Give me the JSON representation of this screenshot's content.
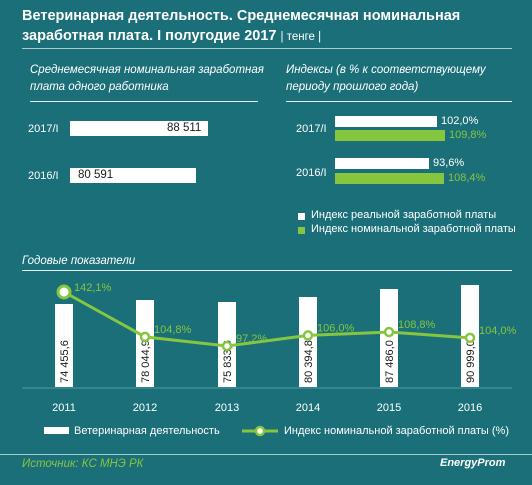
{
  "title": "Ветеринарная деятельность. Среднемесячная номинальная заработная плата. I полугодие 2017",
  "unit": "| тенге |",
  "left_chart": {
    "heading_line1": "Среднемесячная номинальная заработная",
    "heading_line2": "плата одного работника"
  },
  "right_chart": {
    "heading_line1": "Индексы (в % к соответствующему",
    "heading_line2": "периоду прошлого года)",
    "legend_real": "Индекс реальной заработной платы",
    "legend_nominal": "Индекс номинальной заработной платы"
  },
  "annual_heading": "Годовые показатели",
  "annual_legend": {
    "bars": "Ветеринарная деятельность",
    "line": "Индекс номинальной заработной платы (%)"
  },
  "source": "Источник: КС МНЭ РК",
  "logo": "EnergyProm",
  "colors": {
    "panel": "#1b6f79",
    "white": "#ffffff",
    "green": "#86c63f"
  },
  "chart_data": [
    {
      "type": "bar",
      "orientation": "horizontal",
      "categories": [
        "2017/I",
        "2016/I"
      ],
      "values": [
        88511,
        80591
      ],
      "value_labels": [
        "88 511",
        "80 591"
      ],
      "xlim": [
        0,
        88511
      ]
    },
    {
      "type": "bar",
      "orientation": "horizontal",
      "categories": [
        "2017/I",
        "2016/I"
      ],
      "series": [
        {
          "name": "Индекс реальной заработной платы",
          "values": [
            102.0,
            93.6
          ],
          "labels": [
            "102,0%",
            "93,6%"
          ],
          "color": "#ffffff"
        },
        {
          "name": "Индекс номинальной заработной платы",
          "values": [
            109.8,
            108.4
          ],
          "labels": [
            "109,8%",
            "108,4%"
          ],
          "color": "#86c63f"
        }
      ],
      "xlim": [
        0,
        109.8
      ]
    },
    {
      "type": "bar+line",
      "categories": [
        "2011",
        "2012",
        "2013",
        "2014",
        "2015",
        "2016"
      ],
      "series": [
        {
          "name": "Ветеринарная деятельность",
          "type": "bar",
          "values": [
            74455.6,
            78044.9,
            75833.6,
            80394.8,
            87486.0,
            90999.0
          ],
          "labels": [
            "74 455,6",
            "78 044,9",
            "75 833,6",
            "80 394,8",
            "87 486,0",
            "90 999,0"
          ],
          "color": "#ffffff"
        },
        {
          "name": "Индекс номинальной заработной платы (%)",
          "type": "line",
          "values": [
            142.1,
            104.8,
            97.2,
            106.0,
            108.8,
            104.0
          ],
          "labels": [
            "142,1%",
            "104,8%",
            "97,2%",
            "106,0%",
            "108,8%",
            "104,0%"
          ],
          "color": "#86c63f"
        }
      ],
      "ylim_bars": [
        0,
        90999.0
      ],
      "ylim_line": [
        97.2,
        142.1
      ]
    }
  ]
}
